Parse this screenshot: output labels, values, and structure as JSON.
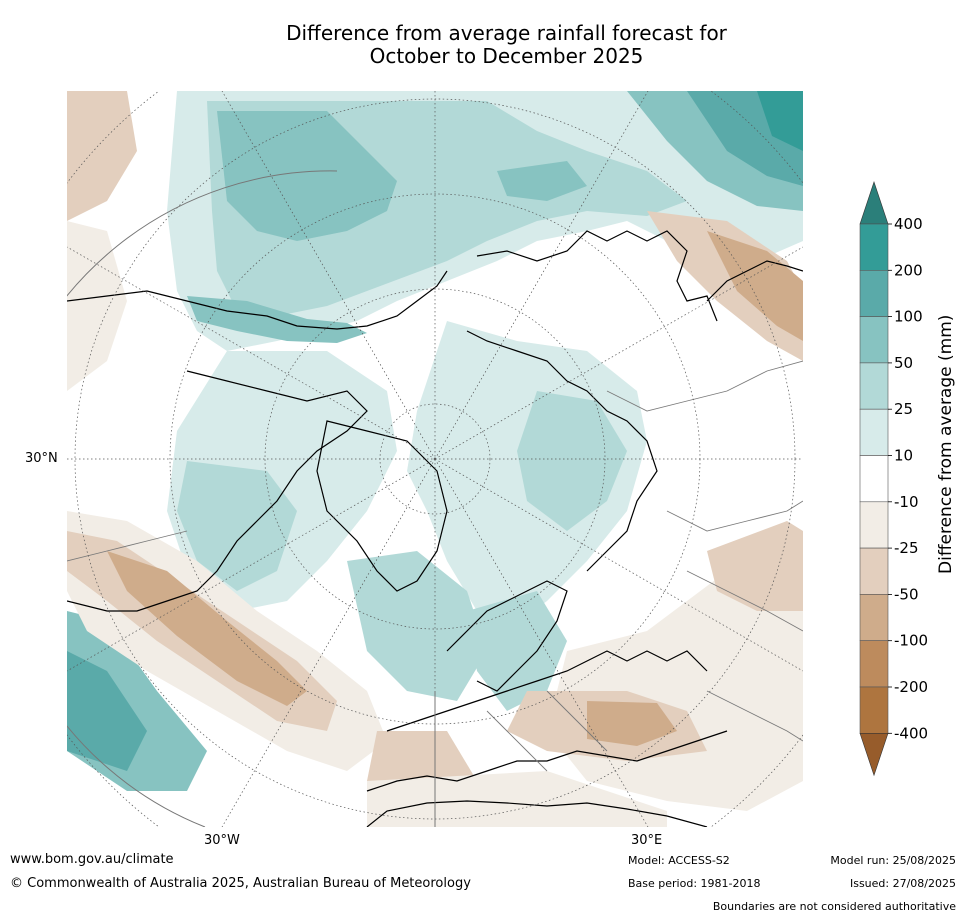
{
  "title_line1": "Difference from average rainfall forecast for",
  "title_line2": "October to December 2025",
  "colorbar": {
    "label": "Difference from average (mm)",
    "ticks": [
      "400",
      "200",
      "100",
      "50",
      "25",
      "10",
      "-10",
      "-25",
      "-50",
      "-100",
      "-200",
      "-400"
    ],
    "colors": [
      "#2b7f7a",
      "#339c97",
      "#5aaaa9",
      "#87c3c1",
      "#b2d9d7",
      "#d7ebea",
      "#ffffff",
      "#f2ede6",
      "#e3cfbe",
      "#cfac8b",
      "#bd8b5d",
      "#ae753f",
      "#975c2b"
    ]
  },
  "axis_labels": {
    "lat_30n": "30°N",
    "lon_30w": "30°W",
    "lon_30e": "30°E"
  },
  "footer": {
    "website": "www.bom.gov.au/climate",
    "copyright": "© Commonwealth of Australia 2025, Australian Bureau of Meteorology",
    "model": "Model: ACCESS-S2",
    "base_period": "Base period: 1981-2018",
    "model_run": "Model run: 25/08/2025",
    "issued": "Issued: 27/08/2025",
    "disclaimer": "Boundaries are not considered authoritative"
  }
}
